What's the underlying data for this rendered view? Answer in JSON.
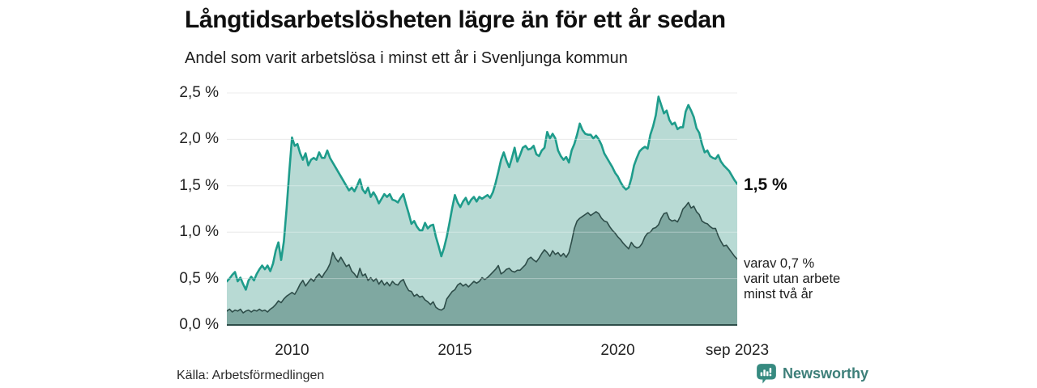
{
  "title": "Långtidsarbetslösheten lägre än för ett år sedan",
  "subtitle": "Andel som varit arbetslösa i minst ett år i Svenljunga kommun",
  "annotations": {
    "end_value_label": "1,5 %",
    "sub_lines": [
      "varav 0,7 %",
      "varit utan arbete",
      "minst två år"
    ]
  },
  "footer": {
    "source": "Källa: Arbetsförmedlingen",
    "brand": "Newsworthy"
  },
  "colors": {
    "line_total": "#1e9c8b",
    "fill_total": "#b8dad4",
    "line_two_years": "#2e4d49",
    "fill_two_years": "#7fa8a1",
    "grid": "#e2e2e2",
    "brand_teal": "#3d7f79",
    "brand_icon": "#368a80"
  },
  "chart_data": {
    "type": "area",
    "title": "Långtidsarbetslösheten lägre än för ett år sedan",
    "subtitle": "Andel som varit arbetslösa i minst ett år i Svenljunga kommun",
    "unit": "percent of workforce, Swedish decimal comma",
    "x_monthly": {
      "start": "2008-01",
      "end": "2023-09"
    },
    "x_range": [
      2008.0,
      2023.667
    ],
    "x_ticks": [
      {
        "t": 2010,
        "label": "2010"
      },
      {
        "t": 2015,
        "label": "2015"
      },
      {
        "t": 2020,
        "label": "2020"
      },
      {
        "t": 2023.667,
        "label": "sep 2023"
      }
    ],
    "ylim": [
      0,
      2.5
    ],
    "y_ticks": [
      {
        "v": 0.0,
        "label": "0,0 %"
      },
      {
        "v": 0.5,
        "label": "0,5 %"
      },
      {
        "v": 1.0,
        "label": "1,0 %"
      },
      {
        "v": 1.5,
        "label": "1,5 %"
      },
      {
        "v": 2.0,
        "label": "2,0 %"
      },
      {
        "v": 2.5,
        "label": "2,5 %"
      }
    ],
    "grid": "horizontal",
    "legend": "none — direct labels at right edge",
    "series": [
      {
        "name": "Arbetslösa minst ett år (totalt)",
        "end_label": "1,5 %",
        "line_color": "#1e9c8b",
        "fill_color": "#b8dad4",
        "values_by_year": [
          [
            0.47,
            0.5,
            0.54,
            0.57,
            0.47,
            0.51,
            0.44,
            0.38,
            0.48,
            0.52,
            0.48,
            0.55
          ],
          [
            0.6,
            0.64,
            0.6,
            0.64,
            0.58,
            0.66,
            0.8,
            0.89,
            0.7,
            0.9,
            1.25,
            1.65
          ],
          [
            2.02,
            1.93,
            1.95,
            1.85,
            1.78,
            1.85,
            1.72,
            1.78,
            1.8,
            1.78,
            1.86,
            1.8
          ],
          [
            1.8,
            1.88,
            1.8,
            1.75,
            1.7,
            1.65,
            1.6,
            1.55,
            1.5,
            1.45,
            1.48,
            1.44
          ],
          [
            1.5,
            1.57,
            1.46,
            1.42,
            1.48,
            1.38,
            1.43,
            1.38,
            1.31,
            1.36,
            1.41,
            1.38
          ],
          [
            1.41,
            1.35,
            1.34,
            1.32,
            1.37,
            1.41,
            1.3,
            1.2,
            1.09,
            1.12,
            1.06,
            1.02
          ],
          [
            1.02,
            1.1,
            1.04,
            1.07,
            1.08,
            0.95,
            0.85,
            0.74,
            0.83,
            0.95,
            1.1,
            1.26
          ],
          [
            1.4,
            1.32,
            1.27,
            1.33,
            1.37,
            1.3,
            1.35,
            1.38,
            1.33,
            1.38,
            1.36,
            1.38
          ],
          [
            1.4,
            1.37,
            1.43,
            1.53,
            1.65,
            1.78,
            1.86,
            1.77,
            1.7,
            1.8,
            1.91,
            1.76
          ],
          [
            1.83,
            1.91,
            1.93,
            1.89,
            1.9,
            1.93,
            1.84,
            1.82,
            1.88,
            1.91,
            2.08,
            2.01
          ],
          [
            2.06,
            2.01,
            1.88,
            1.82,
            1.78,
            1.81,
            1.75,
            1.88,
            1.95,
            2.05,
            2.17,
            2.1
          ],
          [
            2.06,
            2.05,
            2.05,
            2.01,
            2.04,
            2.0,
            1.94,
            1.85,
            1.8,
            1.75,
            1.7,
            1.64
          ],
          [
            1.6,
            1.54,
            1.49,
            1.46,
            1.48,
            1.58,
            1.72,
            1.8,
            1.87,
            1.9,
            1.92,
            1.9
          ],
          [
            2.05,
            2.14,
            2.26,
            2.46,
            2.37,
            2.28,
            2.31,
            2.21,
            2.16,
            2.18,
            2.11,
            2.13
          ],
          [
            2.13,
            2.3,
            2.37,
            2.31,
            2.24,
            2.12,
            2.07,
            1.95,
            1.86,
            1.88,
            1.82,
            1.8
          ],
          [
            1.79,
            1.83,
            1.76,
            1.72,
            1.69,
            1.66,
            1.61,
            1.56,
            1.52
          ]
        ]
      },
      {
        "name": "Varav utan arbete minst två år",
        "end_label": "0,7 %",
        "line_color": "#2e4d49",
        "fill_color": "#7fa8a1",
        "values_by_year": [
          [
            0.15,
            0.17,
            0.14,
            0.16,
            0.15,
            0.17,
            0.13,
            0.15,
            0.16,
            0.14,
            0.16,
            0.15
          ],
          [
            0.17,
            0.15,
            0.16,
            0.14,
            0.17,
            0.19,
            0.22,
            0.26,
            0.24,
            0.28,
            0.31,
            0.33
          ],
          [
            0.35,
            0.33,
            0.38,
            0.44,
            0.48,
            0.42,
            0.46,
            0.5,
            0.47,
            0.52,
            0.55,
            0.51
          ],
          [
            0.56,
            0.6,
            0.66,
            0.78,
            0.72,
            0.68,
            0.73,
            0.68,
            0.63,
            0.65,
            0.58,
            0.55
          ],
          [
            0.51,
            0.61,
            0.53,
            0.55,
            0.48,
            0.51,
            0.47,
            0.5,
            0.44,
            0.48,
            0.43,
            0.46
          ],
          [
            0.42,
            0.47,
            0.44,
            0.43,
            0.47,
            0.49,
            0.42,
            0.37,
            0.36,
            0.31,
            0.33,
            0.3
          ],
          [
            0.31,
            0.27,
            0.25,
            0.22,
            0.25,
            0.19,
            0.17,
            0.16,
            0.18,
            0.28,
            0.32,
            0.36
          ],
          [
            0.38,
            0.43,
            0.45,
            0.42,
            0.44,
            0.41,
            0.44,
            0.47,
            0.45,
            0.47,
            0.51,
            0.49
          ],
          [
            0.51,
            0.54,
            0.57,
            0.6,
            0.64,
            0.55,
            0.57,
            0.6,
            0.61,
            0.58,
            0.57,
            0.59
          ],
          [
            0.59,
            0.62,
            0.65,
            0.71,
            0.73,
            0.7,
            0.68,
            0.72,
            0.77,
            0.81,
            0.78,
            0.74
          ],
          [
            0.8,
            0.76,
            0.78,
            0.74,
            0.77,
            0.73,
            0.78,
            0.9,
            1.04,
            1.12,
            1.15,
            1.17
          ],
          [
            1.19,
            1.21,
            1.18,
            1.2,
            1.22,
            1.2,
            1.15,
            1.12,
            1.11,
            1.06,
            1.02,
            0.99
          ],
          [
            0.95,
            0.92,
            0.88,
            0.85,
            0.82,
            0.89,
            0.85,
            0.83,
            0.84,
            0.88,
            0.95,
            0.99
          ],
          [
            1.0,
            1.04,
            1.05,
            1.08,
            1.15,
            1.2,
            1.21,
            1.14,
            1.12,
            1.13,
            1.11,
            1.17
          ],
          [
            1.25,
            1.28,
            1.32,
            1.26,
            1.28,
            1.22,
            1.19,
            1.12,
            1.1,
            1.09,
            1.06,
            1.04
          ],
          [
            1.04,
            0.96,
            0.9,
            0.85,
            0.86,
            0.82,
            0.78,
            0.74,
            0.71
          ]
        ]
      }
    ]
  }
}
